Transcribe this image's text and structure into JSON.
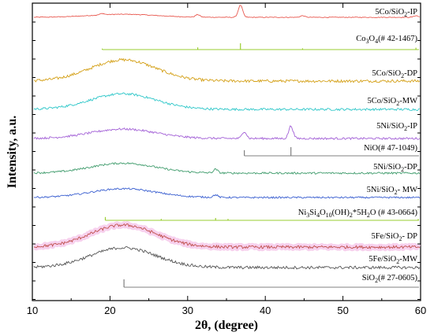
{
  "chart_data": {
    "type": "line",
    "xlabel": "2θ, (degree)",
    "ylabel": "Intensity, a.u.",
    "xlim": [
      10,
      60
    ],
    "xticks": [
      10,
      20,
      30,
      40,
      50,
      60
    ],
    "grid": false,
    "legend": "none",
    "series": [
      {
        "name": "5Co/SiO2-IP",
        "label": [
          "5Co/SiO",
          "2",
          "-IP"
        ],
        "color": "#e8584f",
        "kind": "pattern",
        "peaks": [
          {
            "x": 19.0,
            "h": 0.25
          },
          {
            "x": 31.3,
            "h": 0.45
          },
          {
            "x": 36.8,
            "h": 2.2
          },
          {
            "x": 44.8,
            "h": 0.3
          },
          {
            "x": 59.4,
            "h": 0.3
          }
        ],
        "hump": 0.55
      },
      {
        "name": "Co3O4(# 42-1467)",
        "label": [
          "Co",
          "3",
          "O",
          "4",
          "(# 42-1467)"
        ],
        "color": "#9acd32",
        "kind": "reference",
        "x": [
          19.0,
          31.3,
          36.8,
          44.8,
          59.4
        ],
        "h": [
          0.15,
          0.35,
          1.0,
          0.2,
          0.3
        ]
      },
      {
        "name": "5Co/SiO2-DP",
        "label": [
          "5Co/SiO",
          "2",
          "-DP"
        ],
        "color": "#d4a017",
        "kind": "pattern",
        "peaks": [],
        "hump": 1.0
      },
      {
        "name": "5Co/SiO2-MW",
        "label": [
          "5Co/SiO",
          "2",
          "-MW"
        ],
        "color": "#2ec7c9",
        "kind": "pattern",
        "peaks": [],
        "hump": 0.9
      },
      {
        "name": "5Ni/SiO2-IP",
        "label": [
          "5Ni/SiO",
          "2",
          "-IP"
        ],
        "color": "#a25fd6",
        "kind": "pattern",
        "peaks": [
          {
            "x": 37.3,
            "h": 0.45
          },
          {
            "x": 43.3,
            "h": 0.8
          }
        ],
        "hump": 0.6
      },
      {
        "name": "NiO(# 47-1049)",
        "label": [
          "NiO(# 47-1049)"
        ],
        "color": "#808080",
        "kind": "reference",
        "x": [
          37.3,
          43.3
        ],
        "h": [
          0.65,
          1.0
        ]
      },
      {
        "name": "5Ni/SiO2-DP",
        "label": [
          "5Ni/SiO",
          "2",
          "-DP"
        ],
        "color": "#3e9b6b",
        "kind": "pattern",
        "peaks": [
          {
            "x": 33.6,
            "h": 0.25
          }
        ],
        "hump": 0.7
      },
      {
        "name": "5Ni/SiO2- MW",
        "label": [
          "5Ni/SiO",
          "2",
          "- MW"
        ],
        "color": "#3a5fd0",
        "kind": "pattern",
        "peaks": [
          {
            "x": 33.6,
            "h": 0.2
          }
        ],
        "hump": 0.7
      },
      {
        "name": "Ni3Si4O10(OH)2*5H2O (# 43-0664)",
        "label": [
          "Ni",
          "3",
          "Si",
          "4",
          "O",
          "10",
          "(OH)",
          "2",
          "*5H",
          "2",
          "O (# 43-0664)"
        ],
        "color": "#9acd32",
        "kind": "reference",
        "x": [
          19.4,
          26.6,
          33.6,
          35.2,
          59.7
        ],
        "h": [
          0.7,
          0.3,
          0.5,
          0.3,
          0.3
        ]
      },
      {
        "name": "5Fe/SiO2- DP",
        "label": [
          "5Fe/SiO",
          "2",
          "- DP"
        ],
        "color": "#c0504d",
        "kind": "pattern",
        "peaks": [],
        "hump": 1.0,
        "highlight": "#f4c2e8"
      },
      {
        "name": "5Fe/SiO2-MW",
        "label": [
          "5Fe/SiO",
          "2",
          "-MW"
        ],
        "color": "#555555",
        "kind": "pattern",
        "peaks": [],
        "hump": 0.9
      },
      {
        "name": "SiO2(# 27-0605)",
        "label": [
          "SiO",
          "2",
          "(# 27-0605)"
        ],
        "color": "#808080",
        "kind": "reference",
        "x": [
          21.8
        ],
        "h": [
          1.0
        ]
      }
    ]
  }
}
